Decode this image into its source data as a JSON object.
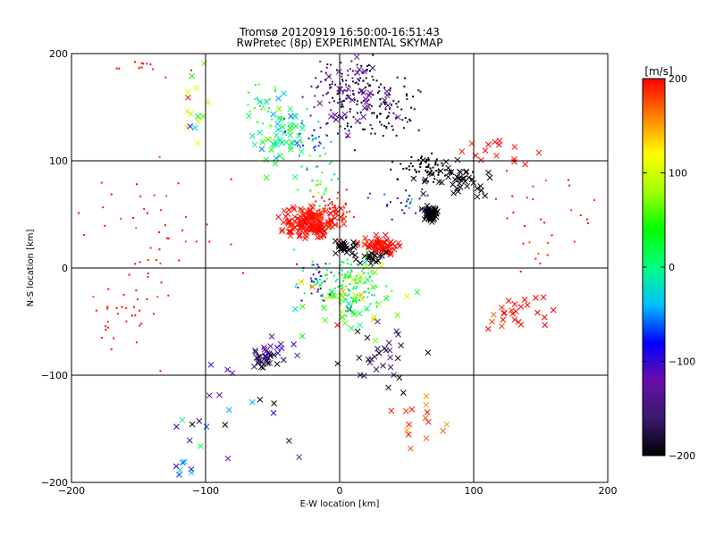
{
  "chart_data": {
    "type": "scatter",
    "title_line1": "Tromsø 20120919 16:50:00-16:51:43",
    "title_line2": "RwPretec (8p) EXPERIMENTAL SKYMAP",
    "xlabel": "E-W location [km]",
    "ylabel": "N-S location [km]",
    "xlim": [
      -200,
      200
    ],
    "ylim": [
      -200,
      200
    ],
    "x_ticks": [
      -200,
      -100,
      0,
      100,
      200
    ],
    "y_ticks": [
      -200,
      -100,
      0,
      100,
      200
    ],
    "x_tick_labels": [
      "−200",
      "−100",
      "0",
      "100",
      "200"
    ],
    "y_tick_labels": [
      "−200",
      "−100",
      "0",
      "100",
      "200"
    ],
    "grid": true,
    "marker_types": [
      "x",
      "dot"
    ],
    "colorbar": {
      "label": "[m/s]",
      "min": -200,
      "max": 200,
      "ticks": [
        200,
        100,
        0,
        -100,
        -200
      ],
      "tick_labels": [
        "200",
        "100",
        "0",
        "−100",
        "−200"
      ],
      "colormap": [
        "#000000",
        "#3a1a6e",
        "#6a0dad",
        "#0000ff",
        "#00bfff",
        "#00ff80",
        "#00ff00",
        "#a0ff00",
        "#ffff00",
        "#ff8000",
        "#ff0000"
      ]
    },
    "clusters": [
      {
        "cx": 68,
        "cy": 50,
        "sx": 3,
        "sy": 4,
        "n": 70,
        "vel": -200,
        "vs": 5,
        "m": "x"
      },
      {
        "cx": 85,
        "cy": 85,
        "sx": 20,
        "sy": 12,
        "n": 45,
        "vel": -195,
        "vs": 10,
        "m": "x"
      },
      {
        "cx": 62,
        "cy": 95,
        "sx": 15,
        "sy": 8,
        "n": 60,
        "vel": -200,
        "vs": 8,
        "m": "dot"
      },
      {
        "cx": 28,
        "cy": 150,
        "sx": 22,
        "sy": 25,
        "n": 120,
        "vel": -185,
        "vs": 15,
        "m": "dot"
      },
      {
        "cx": 0,
        "cy": 170,
        "sx": 18,
        "sy": 18,
        "n": 80,
        "vel": -150,
        "vs": 20,
        "m": "dot"
      },
      {
        "cx": 15,
        "cy": 160,
        "sx": 20,
        "sy": 22,
        "n": 35,
        "vel": -135,
        "vs": 15,
        "m": "x"
      },
      {
        "cx": -45,
        "cy": 130,
        "sx": 15,
        "sy": 25,
        "n": 50,
        "vel": 0,
        "vs": 40,
        "m": "x"
      },
      {
        "cx": -55,
        "cy": 150,
        "sx": 10,
        "sy": 20,
        "n": 30,
        "vel": 30,
        "vs": 40,
        "m": "dot"
      },
      {
        "cx": -20,
        "cy": 120,
        "sx": 15,
        "sy": 15,
        "n": 40,
        "vel": -60,
        "vs": 50,
        "m": "dot"
      },
      {
        "cx": -15,
        "cy": 75,
        "sx": 12,
        "sy": 25,
        "n": 35,
        "vel": 30,
        "vs": 60,
        "m": "dot"
      },
      {
        "cx": -20,
        "cy": 42,
        "sx": 16,
        "sy": 10,
        "n": 150,
        "vel": 200,
        "vs": 15,
        "m": "x"
      },
      {
        "cx": -5,
        "cy": 55,
        "sx": 12,
        "sy": 12,
        "n": 60,
        "vel": 190,
        "vs": 15,
        "m": "dot"
      },
      {
        "cx": 30,
        "cy": 20,
        "sx": 10,
        "sy": 6,
        "n": 60,
        "vel": 200,
        "vs": 15,
        "m": "x"
      },
      {
        "cx": 5,
        "cy": 20,
        "sx": 6,
        "sy": 4,
        "n": 25,
        "vel": -200,
        "vs": 10,
        "m": "x"
      },
      {
        "cx": 25,
        "cy": 10,
        "sx": 10,
        "sy": 4,
        "n": 20,
        "vel": -200,
        "vs": 10,
        "m": "x"
      },
      {
        "cx": 5,
        "cy": -15,
        "sx": 22,
        "sy": 18,
        "n": 140,
        "vel": 20,
        "vs": 35,
        "m": "dot"
      },
      {
        "cx": 10,
        "cy": -30,
        "sx": 25,
        "sy": 25,
        "n": 50,
        "vel": 60,
        "vs": 80,
        "m": "x"
      },
      {
        "cx": -20,
        "cy": -10,
        "sx": 10,
        "sy": 15,
        "n": 25,
        "vel": -120,
        "vs": 40,
        "m": "dot"
      },
      {
        "cx": -55,
        "cy": -85,
        "sx": 8,
        "sy": 6,
        "n": 25,
        "vel": -185,
        "vs": 15,
        "m": "x"
      },
      {
        "cx": -45,
        "cy": -75,
        "sx": 10,
        "sy": 8,
        "n": 15,
        "vel": -120,
        "vs": 20,
        "m": "x"
      },
      {
        "cx": 30,
        "cy": -80,
        "sx": 20,
        "sy": 20,
        "n": 30,
        "vel": -180,
        "vs": 30,
        "m": "x"
      },
      {
        "cx": 135,
        "cy": -40,
        "sx": 18,
        "sy": 14,
        "n": 25,
        "vel": 200,
        "vs": 15,
        "m": "x"
      },
      {
        "cx": 150,
        "cy": 50,
        "sx": 35,
        "sy": 40,
        "n": 30,
        "vel": 200,
        "vs": 20,
        "m": "dot"
      },
      {
        "cx": 120,
        "cy": 110,
        "sx": 20,
        "sy": 10,
        "n": 15,
        "vel": 200,
        "vs": 15,
        "m": "x"
      },
      {
        "cx": -130,
        "cy": 30,
        "sx": 40,
        "sy": 40,
        "n": 45,
        "vel": 200,
        "vs": 20,
        "m": "dot"
      },
      {
        "cx": -160,
        "cy": -40,
        "sx": 25,
        "sy": 25,
        "n": 30,
        "vel": 200,
        "vs": 20,
        "m": "dot"
      },
      {
        "cx": -110,
        "cy": 150,
        "sx": 10,
        "sy": 30,
        "n": 15,
        "vel": 90,
        "vs": 100,
        "m": "x"
      },
      {
        "cx": -80,
        "cy": -130,
        "sx": 30,
        "sy": 30,
        "n": 20,
        "vel": -100,
        "vs": 80,
        "m": "x"
      },
      {
        "cx": -110,
        "cy": -180,
        "sx": 10,
        "sy": 15,
        "n": 8,
        "vel": -30,
        "vs": 80,
        "m": "x"
      },
      {
        "cx": 60,
        "cy": -140,
        "sx": 15,
        "sy": 15,
        "n": 15,
        "vel": 180,
        "vs": 40,
        "m": "x"
      },
      {
        "cx": -150,
        "cy": 185,
        "sx": 40,
        "sy": 10,
        "n": 12,
        "vel": 200,
        "vs": 20,
        "m": "dot"
      },
      {
        "cx": 50,
        "cy": 60,
        "sx": 15,
        "sy": 10,
        "n": 30,
        "vel": -100,
        "vs": 60,
        "m": "dot"
      }
    ]
  }
}
